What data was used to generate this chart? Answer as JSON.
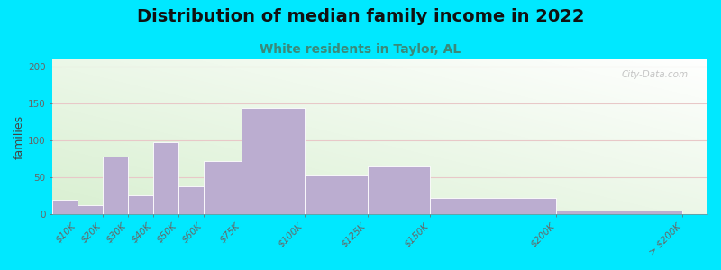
{
  "title": "Distribution of median family income in 2022",
  "subtitle": "White residents in Taylor, AL",
  "ylabel": "families",
  "bar_values": [
    20,
    13,
    78,
    26,
    98,
    38,
    72,
    144,
    53,
    65,
    22,
    5
  ],
  "bin_edges": [
    0,
    10,
    20,
    30,
    40,
    50,
    60,
    75,
    100,
    125,
    150,
    200,
    250
  ],
  "x_tick_pos": [
    10,
    20,
    30,
    40,
    50,
    60,
    75,
    100,
    125,
    150,
    200,
    250
  ],
  "x_tick_labels": [
    "$10K",
    "$20K",
    "$30K",
    "$40K",
    "$50K",
    "$60K",
    "$75K",
    "$100K",
    "$125K",
    "$150K",
    "$200K",
    "> $200K"
  ],
  "bar_color": "#bbadd0",
  "bar_edge_color": "#ffffff",
  "ylim": [
    0,
    210
  ],
  "xlim": [
    0,
    260
  ],
  "yticks": [
    0,
    50,
    100,
    150,
    200
  ],
  "background_outer": "#00e8ff",
  "bg_color_top_left": "#d8efd0",
  "bg_color_right": "#f0f8f0",
  "bg_color_bottom": "#ffffff",
  "grid_color": "#e8c8c8",
  "title_fontsize": 14,
  "subtitle_fontsize": 10,
  "subtitle_color": "#3a8a7a",
  "watermark": "City-Data.com",
  "title_fontweight": "bold",
  "tick_fontsize": 7.5
}
